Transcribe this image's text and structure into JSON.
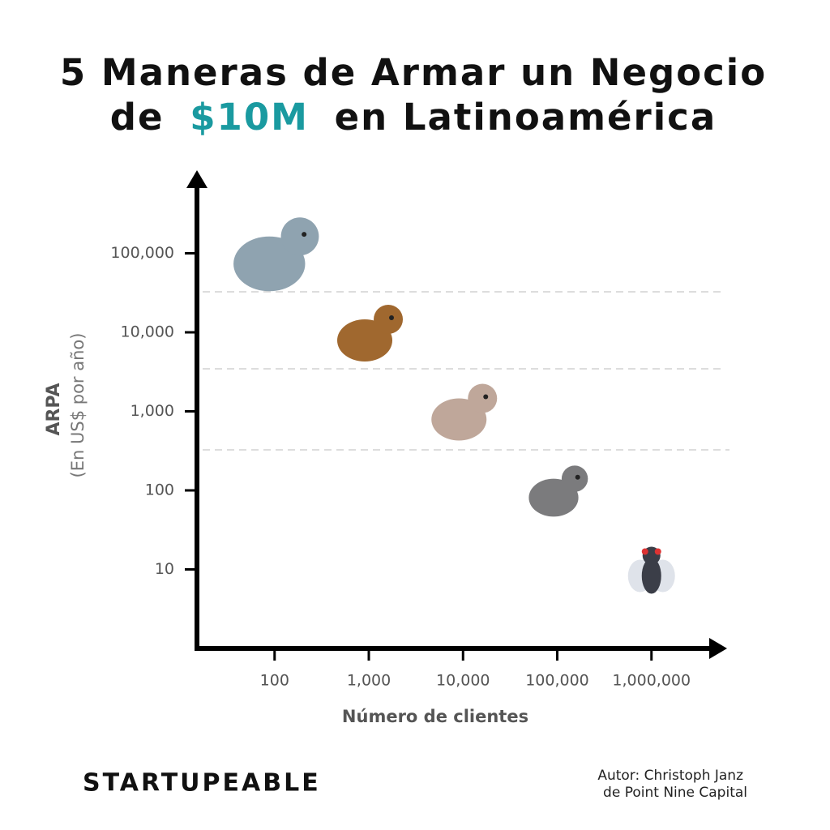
{
  "chart_data": {
    "type": "scatter",
    "title": [
      "5 Maneras de Armar un Negocio",
      "de",
      "$10M",
      "en Latinoamérica"
    ],
    "title_highlight_color": "#1a9aa0",
    "x": [
      100,
      1000,
      10000,
      100000,
      1000000
    ],
    "values": [
      100000,
      10000,
      1000,
      100,
      10
    ],
    "colors": [
      "#8fa3b0",
      "#a0682f",
      "#bfa79a",
      "#7b7b7d",
      "#3b3e48"
    ],
    "log_x": true,
    "log_y": true,
    "xlim": [
      15,
      5000000
    ],
    "ylim": [
      1,
      1000000
    ],
    "xticks": [
      100,
      {
        "value": 1000,
        "label": "1,000"
      },
      {
        "value": 10000,
        "label": "10,000"
      },
      {
        "value": 100000,
        "label": "100,000"
      },
      {
        "value": 1000000,
        "label": "1,000,000"
      }
    ],
    "yticks": [
      10,
      100,
      {
        "value": 1000,
        "label": "1,000"
      },
      {
        "value": 10000,
        "label": "10,000"
      },
      {
        "value": 100000,
        "label": "100,000"
      }
    ],
    "xlabel": "Número de clientes",
    "ylabel": "ARPA",
    "ylabel_sub": "(En US$ por año)",
    "brand": "STARTUPEABLE",
    "credit": [
      "Autor: Christoph Janz",
      "de Point Nine Capital"
    ]
  }
}
